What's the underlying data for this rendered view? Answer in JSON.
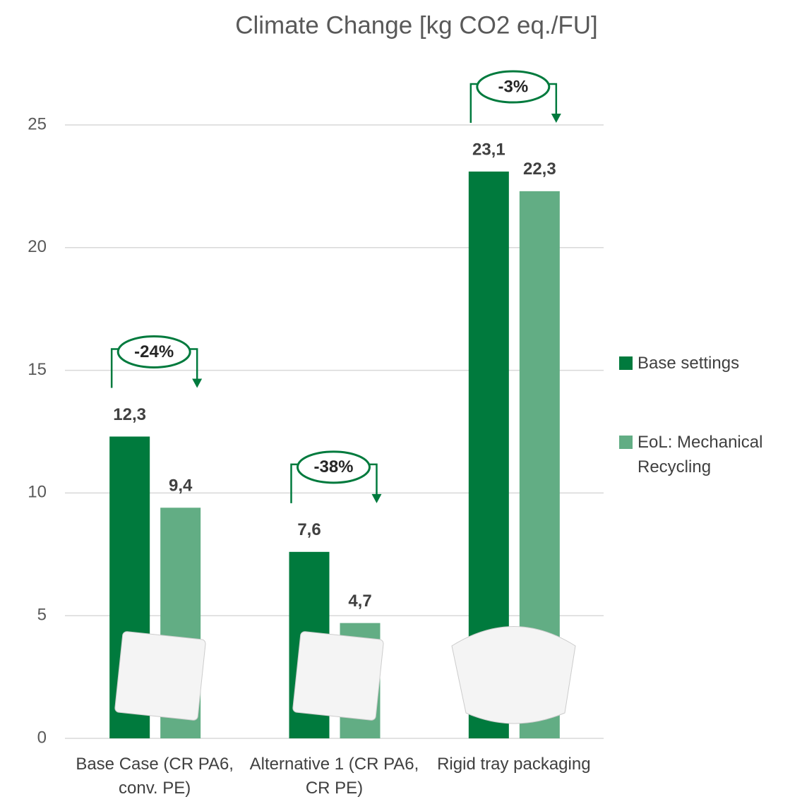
{
  "chart_data": {
    "type": "bar",
    "title": "Climate Change [kg CO2 eq./FU]",
    "categories": [
      "Base Case (CR PA6, conv. PE)",
      "Alternative 1 (CR PA6, CR PE)",
      "Rigid tray packaging"
    ],
    "series": [
      {
        "name": "Base settings",
        "color": "#007a3d",
        "values": [
          12.3,
          7.6,
          23.1
        ],
        "value_labels": [
          "12,3",
          "7,6",
          "23,1"
        ]
      },
      {
        "name": "EoL: Mechanical Recycling",
        "color": "#62ad84",
        "values": [
          9.4,
          4.7,
          22.3
        ],
        "value_labels": [
          "9,4",
          "4,7",
          "22,3"
        ]
      }
    ],
    "annotations": [
      "-24%",
      "-38%",
      "-3%"
    ],
    "ylim": [
      0,
      25
    ],
    "yticks": [
      0,
      5,
      10,
      15,
      20,
      25
    ],
    "grid": true,
    "legend": "right"
  }
}
